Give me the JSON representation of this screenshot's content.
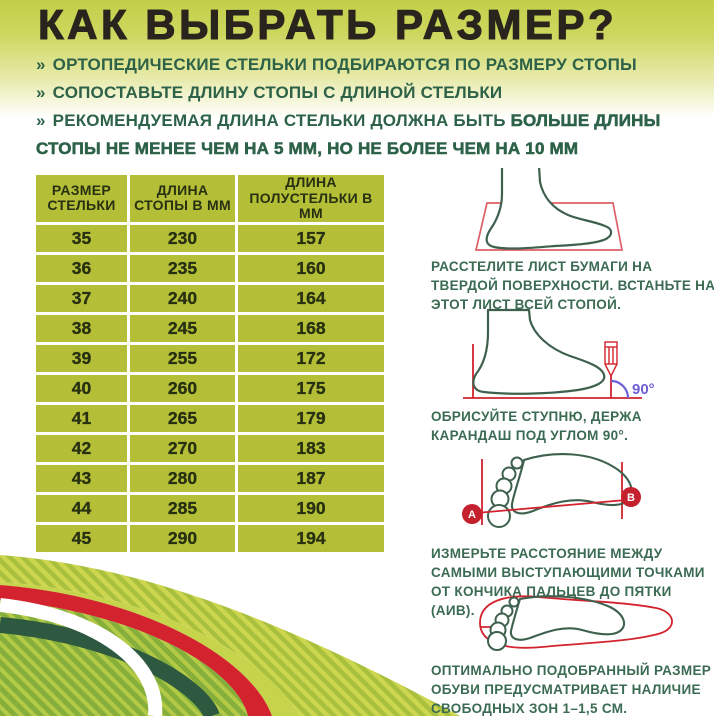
{
  "title": "КАК ВЫБРАТЬ РАЗМЕР?",
  "bullets": [
    {
      "marker": "»",
      "text": "ОРТОПЕДИЧЕСКИЕ СТЕЛЬКИ ПОДБИРАЮТСЯ ПО РАЗМЕРУ СТОПЫ"
    },
    {
      "marker": "»",
      "text": "СОПОСТАВЬТЕ ДЛИНУ СТОПЫ С ДЛИНОЙ СТЕЛЬКИ"
    },
    {
      "marker": "»",
      "text": "РЕКОМЕНДУЕМАЯ ДЛИНА СТЕЛЬКИ ДОЛЖНА БЫТЬ ",
      "text_strong": "БОЛЬШЕ ДЛИНЫ СТОПЫ НЕ МЕНЕЕ ЧЕМ НА 5 ММ, НО НЕ БОЛЕЕ ЧЕМ НА 10 ММ"
    }
  ],
  "size_table": {
    "headers": [
      "РАЗМЕР СТЕЛЬКИ",
      "ДЛИНА СТОПЫ В ММ",
      "ДЛИНА ПОЛУСТЕЛЬКИ В ММ"
    ],
    "rows": [
      [
        "35",
        "230",
        "157"
      ],
      [
        "36",
        "235",
        "160"
      ],
      [
        "37",
        "240",
        "164"
      ],
      [
        "38",
        "245",
        "168"
      ],
      [
        "39",
        "255",
        "172"
      ],
      [
        "40",
        "260",
        "175"
      ],
      [
        "41",
        "265",
        "179"
      ],
      [
        "42",
        "270",
        "183"
      ],
      [
        "43",
        "280",
        "187"
      ],
      [
        "44",
        "285",
        "190"
      ],
      [
        "45",
        "290",
        "194"
      ]
    ]
  },
  "instructions": [
    {
      "icon": "foot-on-paper",
      "text": "РАССТЕЛИТЕ ЛИСТ БУМАГИ НА ТВЕРДОЙ ПОВЕРХНОСТИ. ВСТАНЬТЕ НА ЭТОТ ЛИСТ ВСЕЙ СТОПОЙ."
    },
    {
      "icon": "foot-outline-pencil",
      "angle_label": "90°",
      "text": "ОБРИСУЙТЕ СТУПНЮ, ДЕРЖА КАРАНДАШ ПОД УГЛОМ 90°."
    },
    {
      "icon": "footprint-measure",
      "point_a": "А",
      "point_b": "В",
      "text": "ИЗМЕРЬТЕ РАССТОЯНИЕ МЕЖДУ САМЫМИ ВЫСТУПАЮЩИМИ ТОЧКАМИ ОТ КОНЧИКА ПАЛЬЦЕВ ДО ПЯТКИ (АИВ)."
    },
    {
      "icon": "footprint-in-insole",
      "text": "ОПТИМАЛЬНО ПОДОБРАННЫЙ РАЗМЕР ОБУВИ ПРЕДУСМАТРИВАЕТ НАЛИЧИЕ СВОБОДНЫХ ЗОН 1–1,5 СМ."
    }
  ],
  "colors": {
    "bg_top": "#c3cf49",
    "text_dark": "#29241d",
    "green_text": "#2d6248",
    "caption_green": "#3b6b52",
    "table_cell": "#b4be37",
    "table_text": "#273011",
    "outline_green": "#3e614e",
    "red": "#d2232e",
    "sheet_red": "#dd6068",
    "purple": "#6c61d6",
    "badge_red": "#c5202e",
    "swoosh_olive": "#a9bf3e",
    "swoosh_stripe": "#ccd64e",
    "swoosh_yellow": "#c6d44b",
    "swoosh_dark": "#2d5941",
    "swoosh_green": "#85ae3b",
    "swoosh_green_stripe": "#b3ca46"
  }
}
